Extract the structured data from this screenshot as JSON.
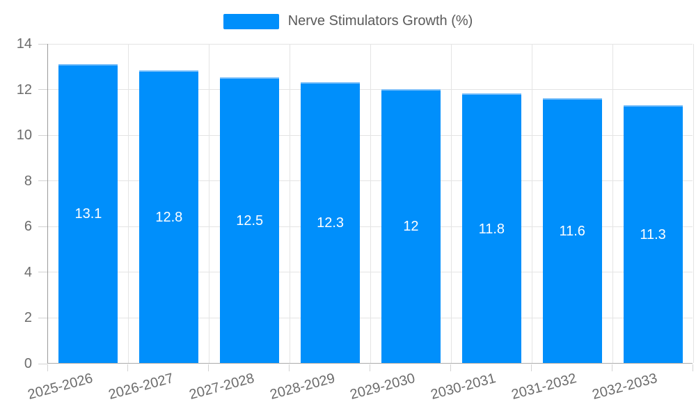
{
  "legend": {
    "label": "Nerve Stimulators Growth (%)"
  },
  "chart_data": {
    "type": "bar",
    "categories": [
      "2025-2026",
      "2026-2027",
      "2027-2028",
      "2028-2029",
      "2029-2030",
      "2030-2031",
      "2031-2032",
      "2032-2033"
    ],
    "values": [
      13.1,
      12.8,
      12.5,
      12.3,
      12,
      11.8,
      11.6,
      11.3
    ],
    "data_labels": [
      "13.1",
      "12.8",
      "12.5",
      "12.3",
      "12",
      "11.8",
      "11.6",
      "11.3"
    ],
    "title": "",
    "xlabel": "",
    "ylabel": "",
    "ylim": [
      0,
      14
    ],
    "y_tick_step": 2,
    "y_tick_labels": [
      "0",
      "2",
      "4",
      "6",
      "8",
      "10",
      "12",
      "14"
    ],
    "grid": true,
    "legend_position": "top",
    "series_name": "Nerve Stimulators Growth (%)",
    "colors": {
      "bar_fill": "#008FFB",
      "bar_top_stroke": "#7cc0fa",
      "data_label_text": "#ffffff",
      "axis_label_text": "#6b6b6b",
      "legend_text": "#5a5a5a",
      "gridline": "#e4e4e4",
      "axis_line": "#a5a5a5",
      "background": "#ffffff"
    }
  }
}
